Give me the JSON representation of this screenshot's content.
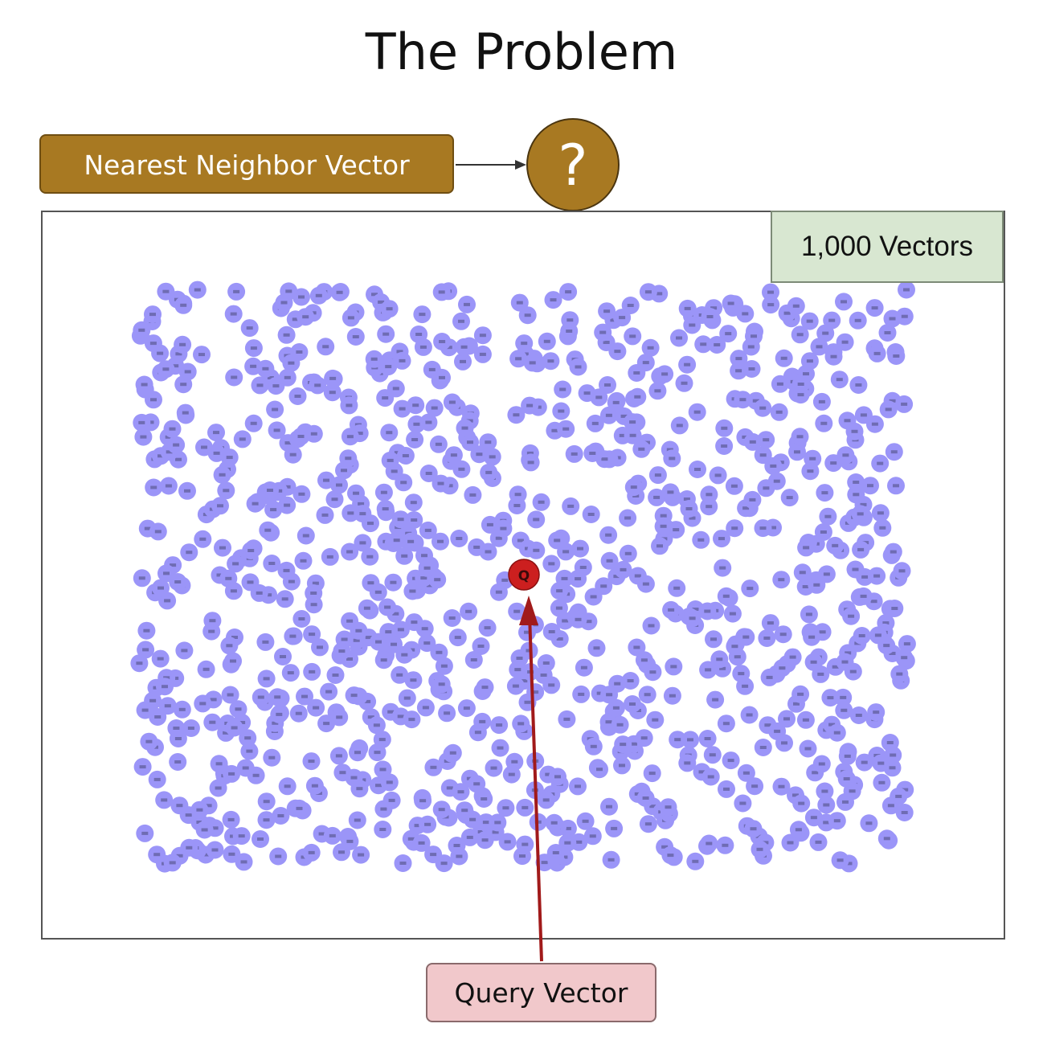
{
  "title": "The Problem",
  "nearest_neighbor_label": "Nearest Neighbor Vector",
  "unknown_symbol": "?",
  "vector_count_label": "1,000 Vectors",
  "query_label": "Query Vector",
  "query_point_label": "Q",
  "colors": {
    "neighbor_box": "#a87922",
    "vector_point": "#9b95f8",
    "query_point": "#cc1f1f",
    "query_arrow": "#a11a1a",
    "count_box": "#d8e7d1",
    "query_box": "#f1c8cb"
  }
}
